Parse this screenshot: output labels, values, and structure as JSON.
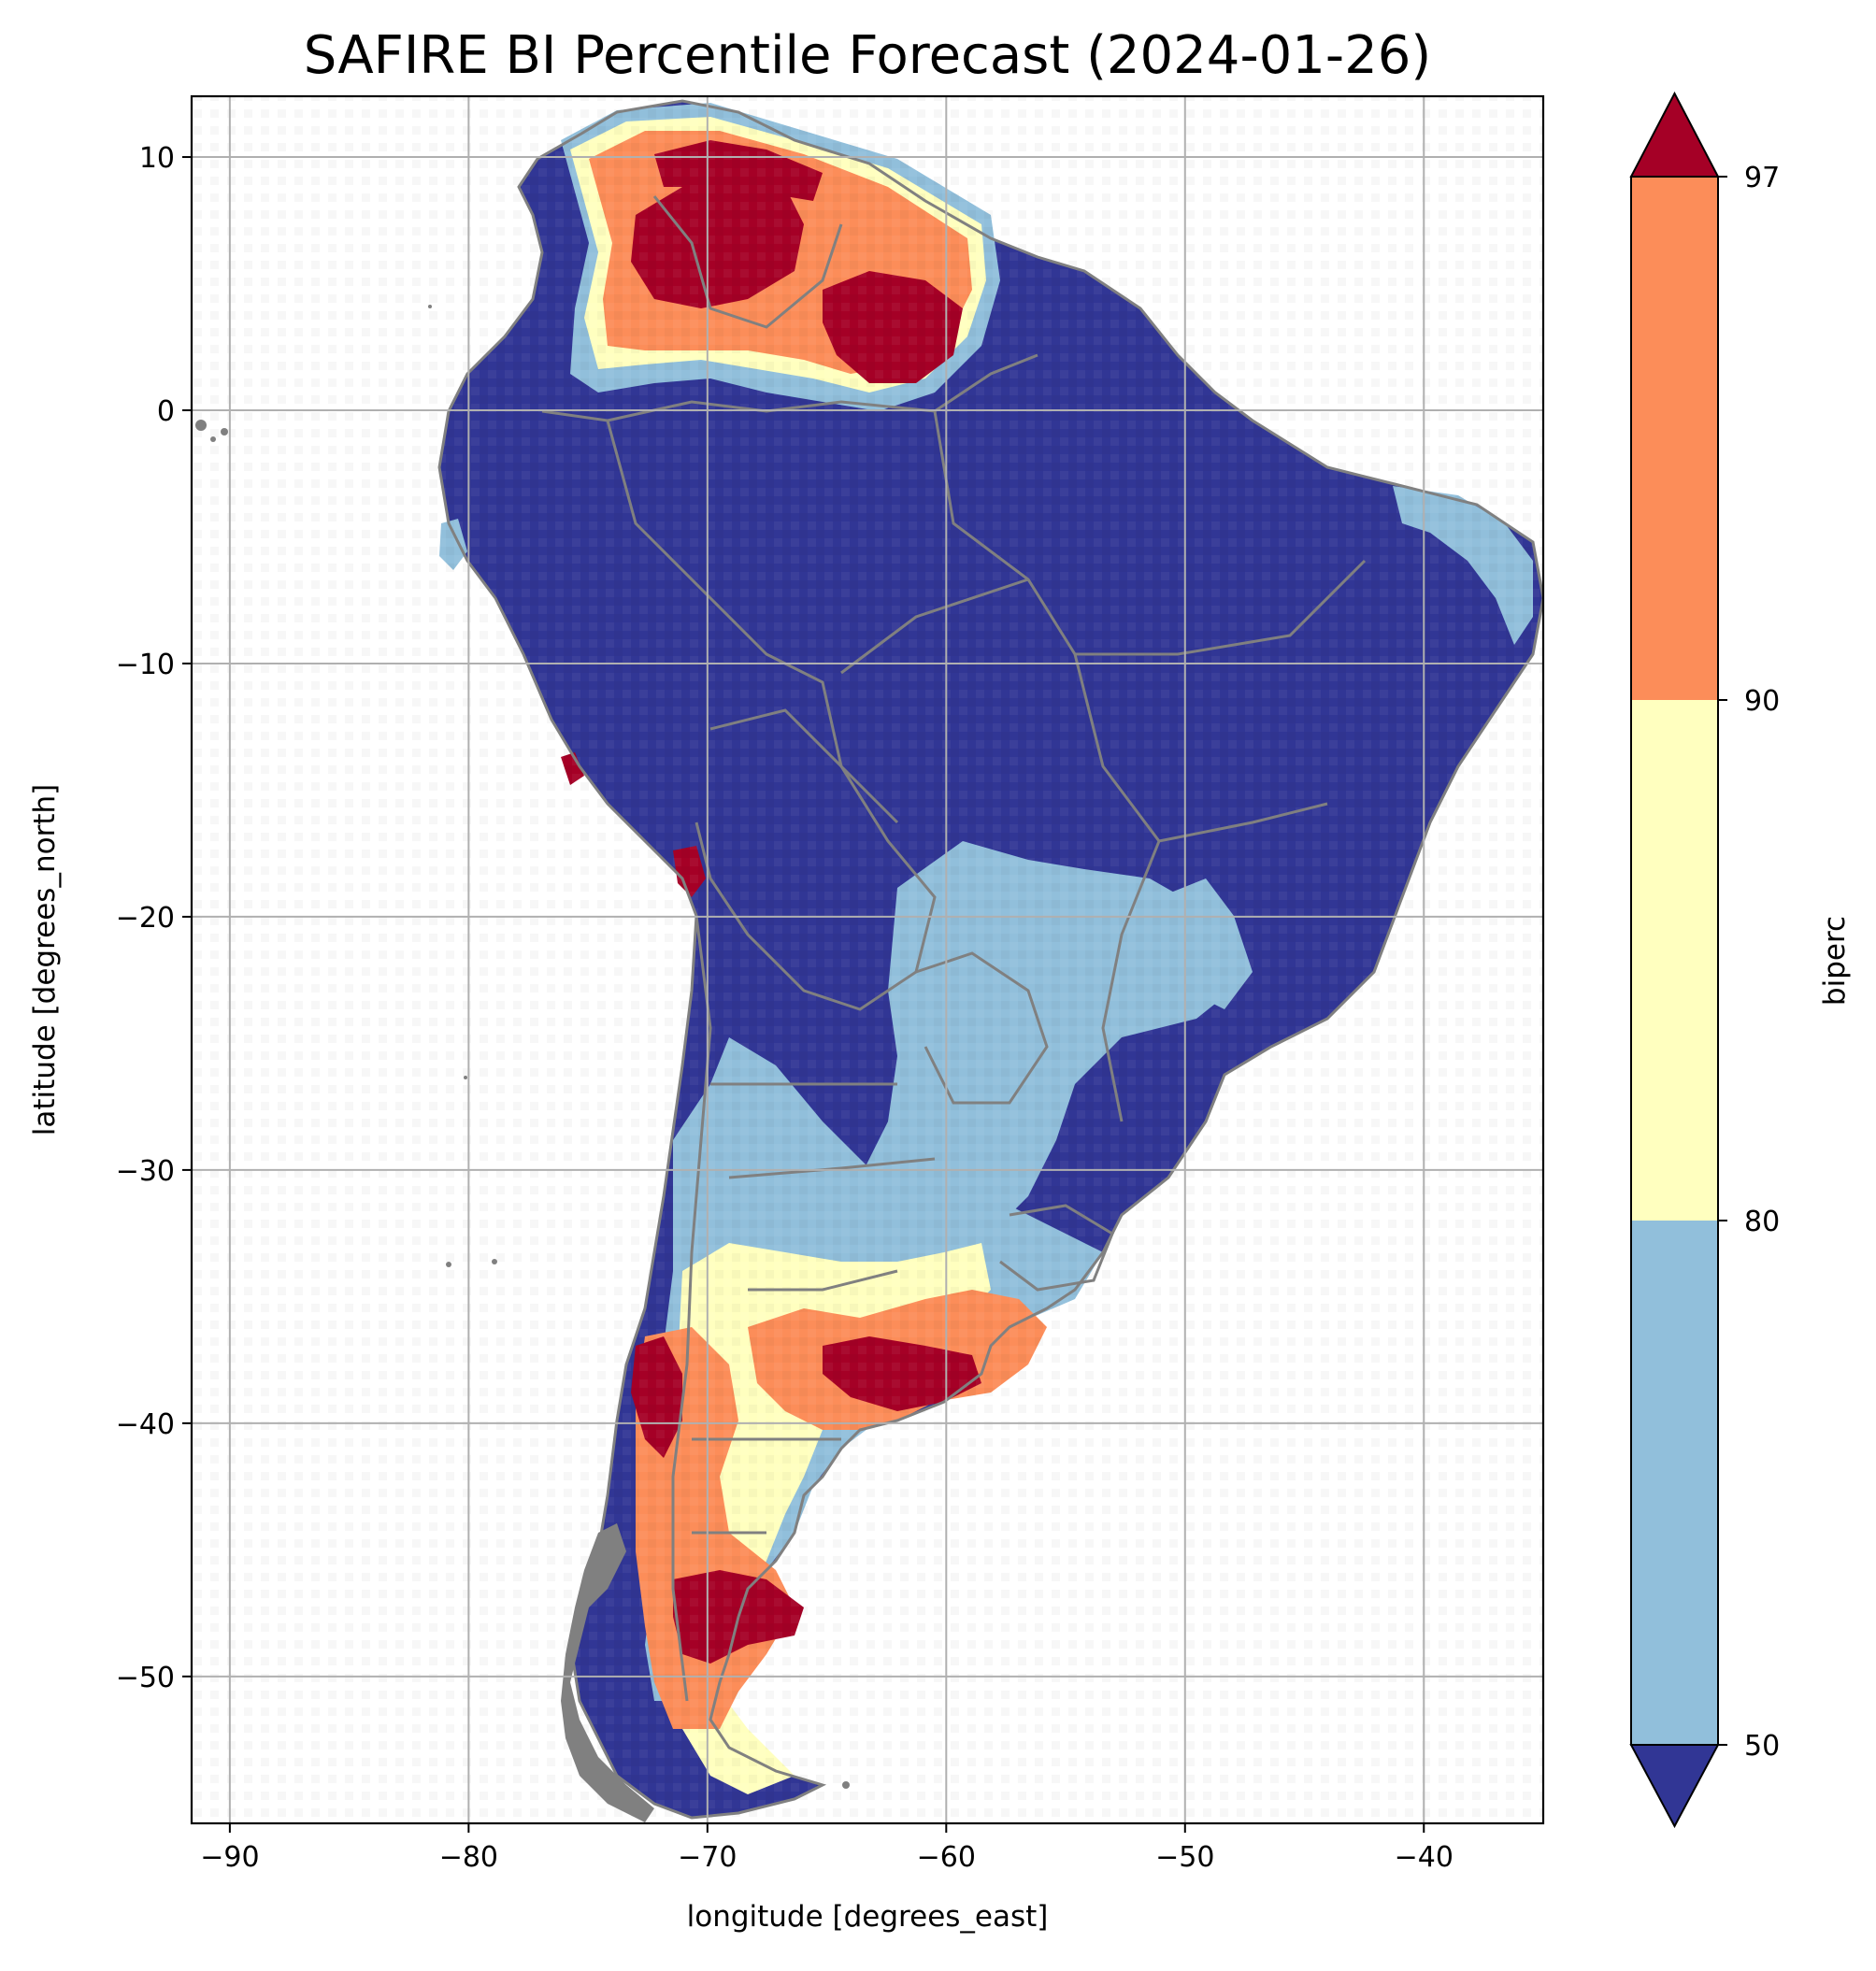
{
  "chart_data": {
    "type": "heatmap",
    "title": "SAFIRE BI Percentile Forecast (2024-01-26)",
    "xlabel": "longitude [degrees_east]",
    "ylabel": "latitude [degrees_north]",
    "xlim": [
      -91.6,
      -35.0
    ],
    "ylim": [
      -55.8,
      12.4
    ],
    "x_ticks": [
      "−90",
      "−80",
      "−70",
      "−60",
      "−50",
      "−40"
    ],
    "y_ticks": [
      "10",
      "0",
      "−10",
      "−20",
      "−30",
      "−40",
      "−50"
    ],
    "grid": true,
    "colorbar": {
      "label": "biperc",
      "ticks": [
        "97",
        "90",
        "80",
        "50"
      ],
      "levels": [
        50,
        80,
        90,
        97
      ],
      "colors": {
        "below_50": "#313695",
        "50_80": "#91bfdb",
        "80_90": "#ffffbf",
        "90_97": "#fc8d59",
        "above_97": "#a50026"
      },
      "extend": "both"
    },
    "regions": [
      {
        "class": "above_97",
        "lon": -66,
        "lat": 6
      },
      {
        "class": "above_97",
        "lon": -62,
        "lat": 3
      },
      {
        "class": "above_97",
        "lon": -64,
        "lat": -38
      },
      {
        "class": "above_97",
        "lon": -70,
        "lat": -48
      },
      {
        "class": "90_97",
        "lon": -70,
        "lat": 2
      },
      {
        "class": "90_97",
        "lon": -67,
        "lat": -37
      },
      {
        "class": "90_97",
        "lon": -70,
        "lat": -43
      },
      {
        "class": "80_90",
        "lon": -67,
        "lat": -34
      },
      {
        "class": "50_80",
        "lon": -60,
        "lat": -24
      },
      {
        "class": "50_80",
        "lon": -67,
        "lat": -31
      },
      {
        "class": "below_50",
        "lon": -60,
        "lat": -8
      }
    ]
  }
}
